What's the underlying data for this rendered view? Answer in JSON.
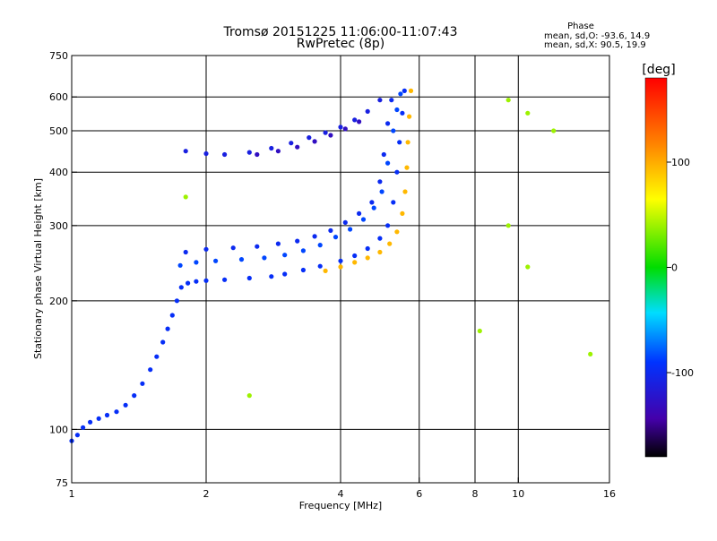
{
  "chart_data": {
    "type": "scatter",
    "title": "Tromsø 20151225 11:06:00-11:07:43",
    "subtitle": "RwPretec (8p)",
    "xlabel": "Frequency [MHz]",
    "ylabel": "Stationary phase Virtual Height [km]",
    "x_scale": "log",
    "y_scale": "log",
    "xlim": [
      1,
      16
    ],
    "ylim": [
      75,
      750
    ],
    "x_ticks": [
      1,
      2,
      4,
      6,
      8,
      10,
      16
    ],
    "y_ticks": [
      75,
      100,
      200,
      300,
      400,
      500,
      600,
      750
    ],
    "x_gridlines": [
      2,
      4,
      6,
      8,
      10
    ],
    "y_gridlines": [
      100,
      200,
      300,
      400,
      500,
      600
    ],
    "grid": true,
    "stats": {
      "title": "Phase",
      "line_o": "mean, sd,O: -93.6, 14.9",
      "line_x": "mean, sd,X:  90.5, 19.9"
    },
    "colorbar": {
      "label": "[deg]",
      "ticks": [
        100,
        0,
        -100
      ],
      "range": [
        -180,
        180
      ]
    },
    "series": [
      {
        "trace": "o-mode-lower",
        "phase": -95,
        "points": [
          [
            1.0,
            94
          ],
          [
            1.03,
            97
          ],
          [
            1.06,
            101
          ],
          [
            1.1,
            104
          ],
          [
            1.15,
            106
          ],
          [
            1.2,
            108
          ],
          [
            1.26,
            110
          ],
          [
            1.32,
            114
          ],
          [
            1.38,
            120
          ],
          [
            1.44,
            128
          ],
          [
            1.5,
            138
          ],
          [
            1.55,
            148
          ],
          [
            1.6,
            160
          ],
          [
            1.64,
            172
          ],
          [
            1.68,
            185
          ],
          [
            1.72,
            200
          ],
          [
            1.76,
            215
          ],
          [
            1.82,
            220
          ],
          [
            1.9,
            222
          ],
          [
            2.0,
            223
          ],
          [
            2.2,
            224
          ],
          [
            2.5,
            226
          ],
          [
            2.8,
            228
          ],
          [
            3.0,
            231
          ],
          [
            3.3,
            236
          ],
          [
            3.6,
            241
          ],
          [
            4.0,
            248
          ],
          [
            4.3,
            255
          ],
          [
            4.6,
            265
          ],
          [
            4.9,
            280
          ],
          [
            5.1,
            300
          ],
          [
            5.25,
            340
          ],
          [
            5.35,
            400
          ],
          [
            5.42,
            470
          ],
          [
            5.5,
            550
          ],
          [
            5.56,
            620
          ]
        ]
      },
      {
        "trace": "o-mode-middle",
        "phase": -85,
        "points": [
          [
            1.75,
            242
          ],
          [
            1.9,
            246
          ],
          [
            2.1,
            248
          ],
          [
            2.4,
            250
          ],
          [
            2.7,
            252
          ],
          [
            3.0,
            256
          ],
          [
            3.3,
            262
          ],
          [
            3.6,
            270
          ],
          [
            3.9,
            282
          ],
          [
            4.2,
            294
          ],
          [
            4.5,
            310
          ],
          [
            4.75,
            330
          ],
          [
            4.95,
            360
          ],
          [
            5.1,
            420
          ],
          [
            5.25,
            500
          ],
          [
            5.35,
            560
          ],
          [
            5.45,
            610
          ]
        ]
      },
      {
        "trace": "o-mode-upper",
        "phase": -100,
        "points": [
          [
            1.8,
            260
          ],
          [
            2.0,
            264
          ],
          [
            2.3,
            266
          ],
          [
            2.6,
            268
          ],
          [
            2.9,
            272
          ],
          [
            3.2,
            276
          ],
          [
            3.5,
            283
          ],
          [
            3.8,
            292
          ],
          [
            4.1,
            305
          ],
          [
            4.4,
            320
          ],
          [
            4.7,
            340
          ],
          [
            4.9,
            380
          ],
          [
            5.0,
            440
          ],
          [
            5.1,
            520
          ],
          [
            5.2,
            590
          ]
        ]
      },
      {
        "trace": "o-mode-second-hop",
        "phase": -110,
        "points": [
          [
            1.8,
            448
          ],
          [
            2.0,
            442
          ],
          [
            2.2,
            440
          ],
          [
            2.5,
            445
          ],
          [
            2.8,
            455
          ],
          [
            3.1,
            468
          ],
          [
            3.4,
            482
          ],
          [
            3.7,
            495
          ],
          [
            4.0,
            510
          ],
          [
            4.3,
            530
          ],
          [
            4.6,
            555
          ],
          [
            4.9,
            590
          ]
        ]
      },
      {
        "trace": "o-mode-second-hop-lower",
        "phase": -130,
        "points": [
          [
            2.6,
            440
          ],
          [
            2.9,
            448
          ],
          [
            3.2,
            458
          ],
          [
            3.5,
            472
          ],
          [
            3.8,
            488
          ],
          [
            4.1,
            505
          ],
          [
            4.4,
            525
          ]
        ]
      },
      {
        "trace": "x-mode",
        "phase": 95,
        "points": [
          [
            3.7,
            235
          ],
          [
            4.0,
            240
          ],
          [
            4.3,
            246
          ],
          [
            4.6,
            252
          ],
          [
            4.9,
            260
          ],
          [
            5.15,
            272
          ],
          [
            5.35,
            290
          ],
          [
            5.5,
            320
          ],
          [
            5.58,
            360
          ],
          [
            5.63,
            410
          ],
          [
            5.66,
            470
          ],
          [
            5.7,
            540
          ],
          [
            5.75,
            620
          ]
        ]
      },
      {
        "trace": "scattered-echoes",
        "phase": 40,
        "points": [
          [
            8.2,
            170
          ],
          [
            9.5,
            590
          ],
          [
            9.5,
            300
          ],
          [
            10.5,
            550
          ],
          [
            12.0,
            500
          ],
          [
            14.5,
            150
          ],
          [
            10.5,
            240
          ],
          [
            2.5,
            120
          ],
          [
            1.8,
            350
          ]
        ]
      }
    ]
  }
}
